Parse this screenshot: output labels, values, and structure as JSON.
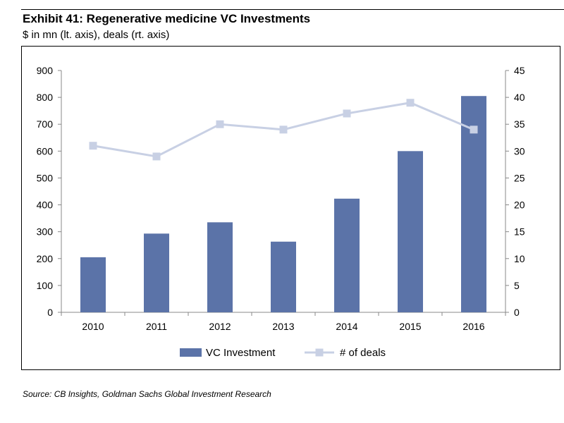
{
  "exhibit": {
    "title": "Exhibit 41: Regenerative medicine VC Investments",
    "subtitle": "$ in mn (lt. axis), deals (rt. axis)",
    "source": "Source: CB Insights, Goldman Sachs Global Investment Research"
  },
  "chart_data": {
    "type": "bar",
    "title": "Exhibit 41: Regenerative medicine VC Investments",
    "subtitle": "$ in mn (lt. axis), deals (rt. axis)",
    "categories": [
      "2010",
      "2011",
      "2012",
      "2013",
      "2014",
      "2015",
      "2016"
    ],
    "series": [
      {
        "name": "VC Investment",
        "type": "bar",
        "axis": "left",
        "color": "#5b73a8",
        "values": [
          205,
          293,
          335,
          263,
          423,
          600,
          805
        ]
      },
      {
        "name": "# of deals",
        "type": "line",
        "axis": "right",
        "color": "#c8d0e4",
        "values": [
          31,
          29,
          35,
          34,
          37,
          39,
          34
        ]
      }
    ],
    "y_left": {
      "min": 0,
      "max": 900,
      "step": 100,
      "label": "$ in mn"
    },
    "y_right": {
      "min": 0,
      "max": 45,
      "step": 5,
      "label": "deals"
    },
    "y_left_ticks": [
      "0",
      "100",
      "200",
      "300",
      "400",
      "500",
      "600",
      "700",
      "800",
      "900"
    ],
    "y_right_ticks": [
      "0",
      "5",
      "10",
      "15",
      "20",
      "25",
      "30",
      "35",
      "40",
      "45"
    ],
    "legend_position": "bottom",
    "grid": false
  }
}
